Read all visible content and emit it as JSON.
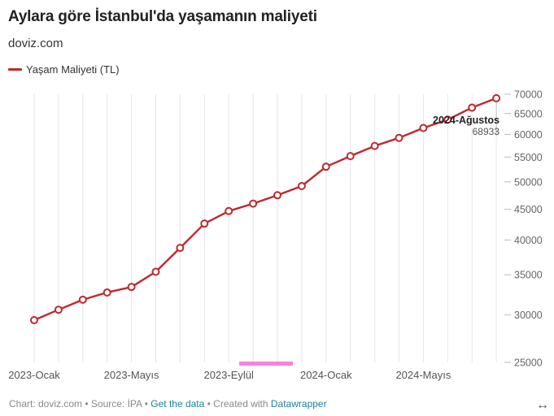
{
  "title": "Aylara göre İstanbul'da yaşamanın maliyeti",
  "subtitle": "doviz.com",
  "footer": {
    "chart_label": "Chart: doviz.com",
    "sep1": " • ",
    "source_label": "Source: İPA",
    "sep2": " • ",
    "get_data": "Get the data",
    "sep3": " • Created with ",
    "datawrapper": "Datawrapper"
  },
  "icons": {
    "expand": "expand-icon"
  },
  "colors": {
    "line": "#c0282d",
    "grid": "#e6e6e6",
    "highlight": "#ff80d5"
  },
  "chart_data": {
    "type": "line",
    "title": "Aylara göre İstanbul'da yaşamanın maliyeti",
    "xlabel": "",
    "ylabel": "",
    "scale": "log",
    "ylim": [
      25000,
      70000
    ],
    "yticks": [
      25000,
      30000,
      35000,
      40000,
      45000,
      50000,
      55000,
      60000,
      65000,
      70000
    ],
    "x_tick_labels": [
      "2023-Ocak",
      "2023-Mayıs",
      "2023-Eylül",
      "2024-Ocak",
      "2024-Mayıs"
    ],
    "legend": "top-left",
    "series": [
      {
        "name": "Yaşam Maliyeti (TL)",
        "x": [
          "2023-Ocak",
          "2023-Şubat",
          "2023-Mart",
          "2023-Nisan",
          "2023-Mayıs",
          "2023-Haziran",
          "2023-Temmuz",
          "2023-Ağustos",
          "2023-Eylül",
          "2023-Ekim",
          "2023-Kasım",
          "2023-Aralık",
          "2024-Ocak",
          "2024-Şubat",
          "2024-Mart",
          "2024-Nisan",
          "2024-Mayıs",
          "2024-Haziran",
          "2024-Temmuz",
          "2024-Ağustos"
        ],
        "values": [
          29400,
          30600,
          31800,
          32700,
          33400,
          35400,
          38800,
          42600,
          44700,
          46000,
          47500,
          49200,
          53000,
          55200,
          57400,
          59200,
          61500,
          63500,
          66500,
          68933
        ]
      }
    ],
    "annotation": {
      "label": "2024-Ağustos",
      "value": "68933"
    }
  }
}
